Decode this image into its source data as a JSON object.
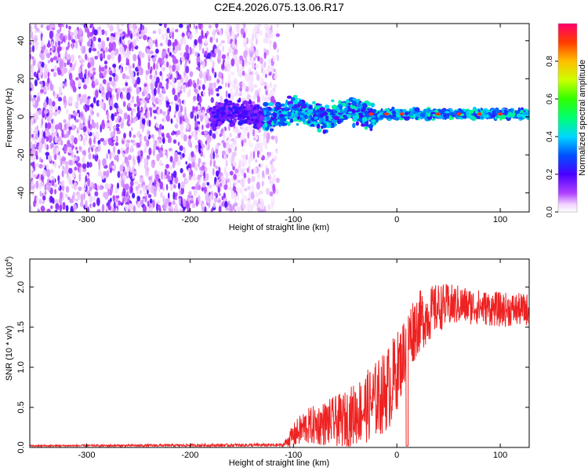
{
  "title": "C2E4.2026.075.13.06.R17",
  "chart_data": [
    {
      "type": "heatmap",
      "name": "spectrogram",
      "xlabel": "Height of straight line (km)",
      "ylabel": "Frequency (Hz)",
      "xlim": [
        -355,
        128
      ],
      "ylim": [
        -50,
        49
      ],
      "xticks": [
        -300,
        -200,
        -100,
        0,
        100
      ],
      "yticks": [
        -40,
        -20,
        0,
        20,
        40
      ],
      "colorbar": {
        "label": "Normalized spectral amplitude",
        "range": [
          0.0,
          1.0
        ],
        "ticks": [
          "0.0",
          "0.2",
          "0.4",
          "0.6",
          "0.8"
        ],
        "tick_values": [
          0.0,
          0.2,
          0.4,
          0.6,
          0.8
        ]
      },
      "features": {
        "noise_region_x": [
          -355,
          -125
        ],
        "signal_start_x": -180,
        "signal_center_freq_hz": 1.5,
        "strong_peaks_x": [
          -25,
          -10,
          5,
          40,
          60,
          80,
          100
        ]
      }
    },
    {
      "type": "line",
      "name": "snr",
      "xlabel": "Height of straight line (km)",
      "ylabel": "SNR (10 * v/v)",
      "multiplier": "(x10",
      "multiplier_exp": "4",
      "multiplier_close": ")",
      "xlim": [
        -355,
        128
      ],
      "ylim": [
        0,
        2.35
      ],
      "xticks": [
        -300,
        -200,
        -100,
        0,
        100
      ],
      "yticks": [
        0.0,
        0.5,
        1.0,
        1.5,
        2.0
      ],
      "ytick_labels": [
        "0.0",
        "0.5",
        "1.0",
        "1.5",
        "2.0"
      ],
      "color": "#ee2222",
      "envelope": {
        "x": [
          -355,
          -110,
          -100,
          -90,
          -70,
          -50,
          -30,
          -15,
          -5,
          5,
          10,
          20,
          30,
          40,
          60,
          80,
          100,
          128
        ],
        "mean": [
          0.02,
          0.03,
          0.15,
          0.25,
          0.3,
          0.35,
          0.5,
          0.65,
          0.8,
          1.1,
          1.35,
          1.55,
          1.65,
          1.75,
          1.78,
          1.75,
          1.72,
          1.72
        ],
        "amplitude": [
          0.01,
          0.02,
          0.15,
          0.22,
          0.28,
          0.35,
          0.45,
          0.5,
          0.55,
          0.45,
          0.45,
          0.4,
          0.35,
          0.3,
          0.25,
          0.22,
          0.22,
          0.2
        ]
      }
    }
  ]
}
